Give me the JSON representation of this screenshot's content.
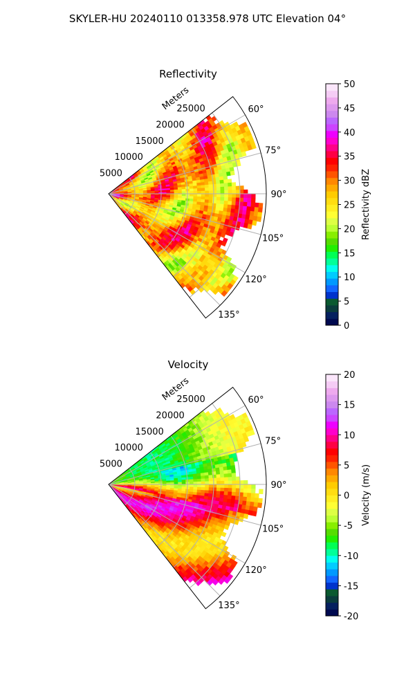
{
  "figure": {
    "title": "SKYLER-HU  20240110  013358.978 UTC Elevation 04°"
  },
  "chart_data": [
    {
      "type": "heatmap",
      "projection": "polar-sector",
      "title": "Reflectivity",
      "radial_label": "Meters",
      "radial_ticks": [
        "5000",
        "10000",
        "15000",
        "20000",
        "25000"
      ],
      "azimuth_ticks": [
        "60°",
        "75°",
        "90°",
        "105°",
        "120°",
        "135°"
      ],
      "azimuth_range_deg": [
        52,
        142
      ],
      "range_max_m": 30000,
      "grid": true,
      "colorbar": {
        "label": "Reflectivity dBZ",
        "min": 0,
        "max": 50,
        "ticks": [
          "0",
          "5",
          "10",
          "15",
          "20",
          "25",
          "30",
          "35",
          "40",
          "45",
          "50"
        ],
        "colors": [
          "#000a50",
          "#05205f",
          "#0a3c3c",
          "#0a5a30",
          "#0033cc",
          "#1166ff",
          "#0099ff",
          "#00ccff",
          "#00ffee",
          "#00ff99",
          "#00ff55",
          "#22ee00",
          "#55dd00",
          "#88ee00",
          "#bbff33",
          "#ddff44",
          "#ffff33",
          "#ffee22",
          "#ffdd11",
          "#ffcc00",
          "#ffaa00",
          "#ff8800",
          "#ff5500",
          "#ff2200",
          "#ff0000",
          "#ff0044",
          "#ff0088",
          "#ff00cc",
          "#ee00ff",
          "#cc44ff",
          "#bb66ff",
          "#cc88ee",
          "#dd99ee",
          "#eeaaee",
          "#f5ccf5",
          "#fbe6fb"
        ]
      }
    },
    {
      "type": "heatmap",
      "projection": "polar-sector",
      "title": "Velocity",
      "radial_label": "Meters",
      "radial_ticks": [
        "5000",
        "10000",
        "15000",
        "20000",
        "25000"
      ],
      "azimuth_ticks": [
        "60°",
        "75°",
        "90°",
        "105°",
        "120°",
        "135°"
      ],
      "azimuth_range_deg": [
        52,
        142
      ],
      "range_max_m": 30000,
      "grid": true,
      "colorbar": {
        "label": "Velocity (m/s)",
        "min": -20,
        "max": 20,
        "ticks": [
          "-20",
          "-15",
          "-10",
          "-5",
          "0",
          "5",
          "10",
          "15",
          "20"
        ],
        "colors": [
          "#000a50",
          "#05205f",
          "#0a3c3c",
          "#0a5a30",
          "#0033cc",
          "#1166ff",
          "#0099ff",
          "#00ccff",
          "#00ffee",
          "#00ff99",
          "#00ff55",
          "#22ee00",
          "#55dd00",
          "#88ee00",
          "#bbff33",
          "#ddff44",
          "#ffff33",
          "#ffee22",
          "#ffdd11",
          "#ffcc00",
          "#ffaa00",
          "#ff8800",
          "#ff5500",
          "#ff2200",
          "#ff0000",
          "#ff0044",
          "#ff0088",
          "#ff00cc",
          "#ee00ff",
          "#cc44ff",
          "#bb66ff",
          "#cc88ee",
          "#dd99ee",
          "#eeaaee",
          "#f5ccf5",
          "#fbe6fb"
        ]
      }
    }
  ]
}
